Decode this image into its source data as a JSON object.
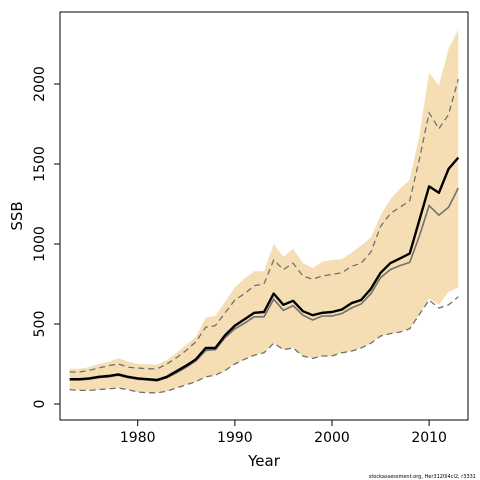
{
  "chart_data": {
    "type": "line",
    "xlabel": "Year",
    "ylabel": "SSB",
    "xlim": [
      1972,
      2014
    ],
    "ylim": [
      -100,
      2450
    ],
    "xticks": [
      1980,
      1990,
      2000,
      2010
    ],
    "yticks": [
      0,
      500,
      1000,
      1500,
      2000
    ],
    "grid": false,
    "legend": "none",
    "credit": "stockassessment.org, Her3120l4cl2, r3331",
    "colors": {
      "band": "#f5deb3",
      "estimate": "#000000",
      "dashed": "#707070",
      "grey_line": "#707070"
    },
    "x": [
      1973,
      1974,
      1975,
      1976,
      1977,
      1978,
      1979,
      1980,
      1981,
      1982,
      1983,
      1984,
      1985,
      1986,
      1987,
      1988,
      1989,
      1990,
      1991,
      1992,
      1993,
      1994,
      1995,
      1996,
      1997,
      1998,
      1999,
      2000,
      2001,
      2002,
      2003,
      2004,
      2005,
      2006,
      2007,
      2008,
      2009,
      2010,
      2011,
      2012,
      2013
    ],
    "band_lower": [
      90,
      85,
      85,
      90,
      95,
      100,
      90,
      75,
      70,
      70,
      80,
      100,
      120,
      140,
      170,
      180,
      210,
      250,
      280,
      305,
      320,
      380,
      340,
      350,
      300,
      285,
      300,
      300,
      320,
      330,
      350,
      380,
      425,
      440,
      450,
      470,
      560,
      660,
      620,
      700,
      730
    ],
    "band_upper": [
      220,
      220,
      230,
      250,
      265,
      285,
      265,
      250,
      248,
      245,
      275,
      320,
      370,
      420,
      540,
      550,
      640,
      730,
      785,
      830,
      830,
      1000,
      920,
      970,
      880,
      850,
      890,
      900,
      905,
      945,
      990,
      1040,
      1180,
      1280,
      1345,
      1400,
      1680,
      2070,
      1990,
      2220,
      2340
    ],
    "estimate": [
      155,
      155,
      160,
      170,
      175,
      185,
      170,
      160,
      155,
      150,
      170,
      205,
      240,
      280,
      350,
      350,
      430,
      490,
      530,
      570,
      575,
      690,
      620,
      645,
      580,
      555,
      570,
      575,
      590,
      630,
      650,
      720,
      820,
      880,
      910,
      940,
      1150,
      1360,
      1320,
      1470,
      1540
    ],
    "dashed_upper": [
      200,
      200,
      210,
      225,
      240,
      250,
      230,
      225,
      220,
      220,
      250,
      290,
      335,
      390,
      480,
      490,
      570,
      650,
      690,
      740,
      750,
      900,
      840,
      880,
      800,
      780,
      800,
      810,
      820,
      860,
      880,
      950,
      1110,
      1190,
      1230,
      1270,
      1530,
      1820,
      1720,
      1810,
      2030
    ],
    "dashed_lower": [
      90,
      85,
      85,
      90,
      95,
      100,
      90,
      75,
      70,
      70,
      80,
      100,
      120,
      140,
      170,
      180,
      210,
      250,
      280,
      305,
      320,
      380,
      340,
      350,
      300,
      285,
      300,
      300,
      320,
      330,
      350,
      380,
      425,
      440,
      450,
      470,
      560,
      650,
      600,
      620,
      670
    ],
    "grey_line": [
      150,
      150,
      155,
      165,
      170,
      180,
      165,
      155,
      150,
      145,
      165,
      195,
      230,
      270,
      335,
      340,
      415,
      470,
      505,
      545,
      545,
      655,
      585,
      615,
      555,
      525,
      550,
      550,
      565,
      600,
      625,
      690,
      790,
      840,
      865,
      885,
      1050,
      1240,
      1180,
      1230,
      1350
    ]
  }
}
